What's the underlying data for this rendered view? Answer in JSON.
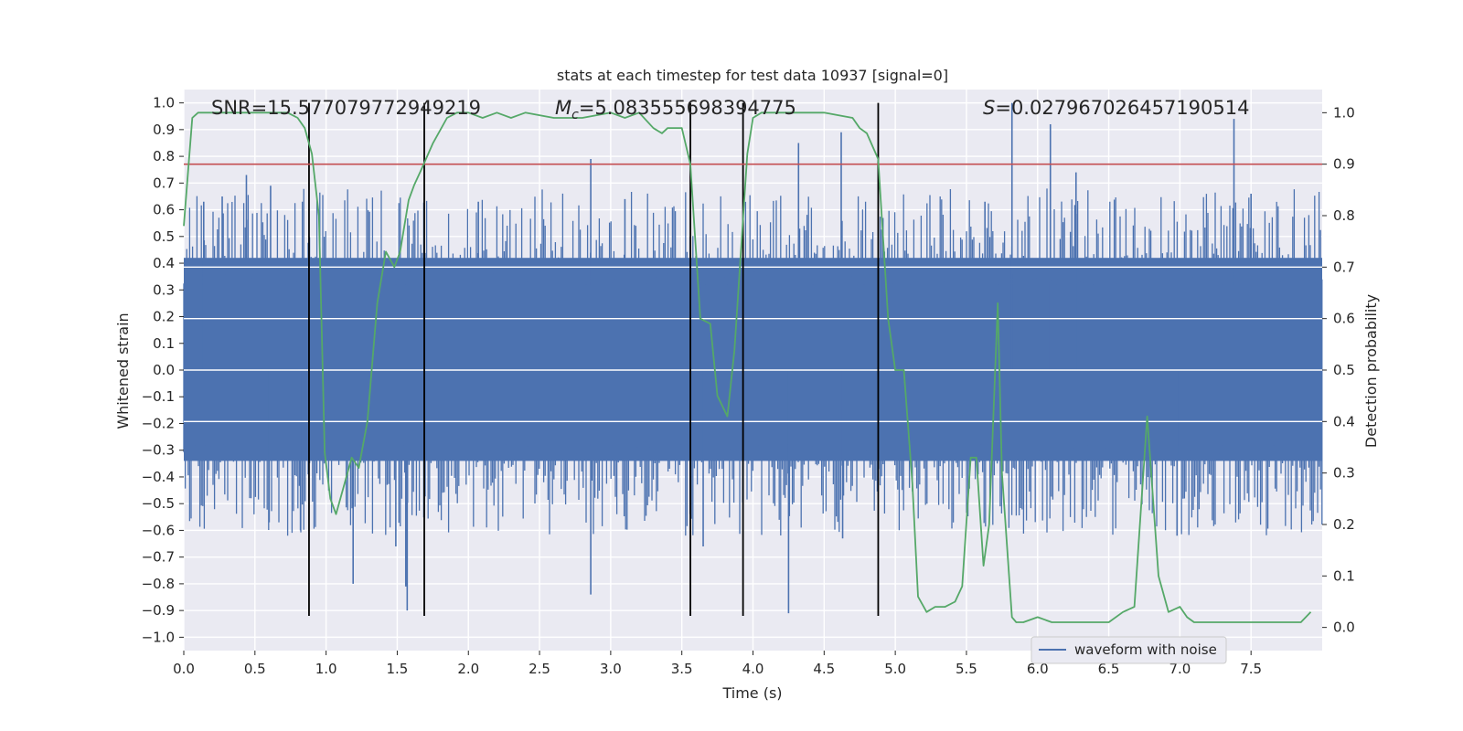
{
  "chart_data": {
    "type": "line",
    "title": "stats at each timestep for test data 10937 [signal=0]",
    "xlabel": "Time (s)",
    "ylabel": "Whitened strain",
    "y2label": "Detection probability",
    "xlim": [
      0.0,
      8.0
    ],
    "ylim": [
      -1.05,
      1.05
    ],
    "y2lim": [
      -0.045,
      1.045
    ],
    "xticks": [
      0.0,
      0.5,
      1.0,
      1.5,
      2.0,
      2.5,
      3.0,
      3.5,
      4.0,
      4.5,
      5.0,
      5.5,
      6.0,
      6.5,
      7.0,
      7.5
    ],
    "xtick_labels": [
      "0.0",
      "0.5",
      "1.0",
      "1.5",
      "2.0",
      "2.5",
      "3.0",
      "3.5",
      "4.0",
      "4.5",
      "5.0",
      "5.5",
      "6.0",
      "6.5",
      "7.0",
      "7.5"
    ],
    "yticks": [
      1.0,
      0.9,
      0.8,
      0.7,
      0.6,
      0.5,
      0.4,
      0.3,
      0.2,
      0.1,
      0.0,
      -0.1,
      -0.2,
      -0.3,
      -0.4,
      -0.5,
      -0.6,
      -0.7,
      -0.8,
      -0.9,
      -1.0
    ],
    "ytick_labels": [
      "1.0",
      "0.9",
      "0.8",
      "0.7",
      "0.6",
      "0.5",
      "0.4",
      "0.3",
      "0.2",
      "0.1",
      "0.0",
      "−0.1",
      "−0.2",
      "−0.3",
      "−0.4",
      "−0.5",
      "−0.6",
      "−0.7",
      "−0.8",
      "−0.9",
      "−1.0"
    ],
    "y2ticks": [
      1.0,
      0.9,
      0.8,
      0.7,
      0.6,
      0.5,
      0.4,
      0.3,
      0.2,
      0.1,
      0.0
    ],
    "y2tick_labels": [
      "1.0",
      "0.9",
      "0.8",
      "0.7",
      "0.6",
      "0.5",
      "0.4",
      "0.3",
      "0.2",
      "0.1",
      "0.0"
    ],
    "annotations": {
      "snr": "SNR=15.577079772949219",
      "mc_symbol": "M",
      "mc_subscript": "c",
      "mc_value": "=5.083555698394775",
      "s_symbol": "S",
      "s_value": "=0.027967026457190514"
    },
    "legend": {
      "location": "lower-center-right",
      "entries": [
        "waveform with noise"
      ]
    },
    "threshold": {
      "value": 0.9,
      "axis": "y2",
      "color": "#c44e52"
    },
    "vlines": {
      "x": [
        0.88,
        1.69,
        3.56,
        3.93,
        4.88
      ],
      "ymin": -0.92,
      "ymax": 1.0,
      "color": "#000000"
    },
    "series": [
      {
        "name": "waveform with noise",
        "axis": "y",
        "color": "#4c72b0",
        "envelope": {
          "upper_typical": 0.42,
          "lower_typical": -0.34,
          "upper_max": 1.0,
          "lower_min": -0.92
        },
        "spikes": [
          {
            "x": 0.14,
            "y": 0.63
          },
          {
            "x": 0.27,
            "y": 0.65
          },
          {
            "x": 0.44,
            "y": 0.73
          },
          {
            "x": 0.61,
            "y": 0.69
          },
          {
            "x": 0.6,
            "y": -0.57
          },
          {
            "x": 0.82,
            "y": -0.6
          },
          {
            "x": 1.19,
            "y": -0.8
          },
          {
            "x": 1.49,
            "y": -0.66
          },
          {
            "x": 1.56,
            "y": -0.81
          },
          {
            "x": 1.57,
            "y": -0.9
          },
          {
            "x": 2.07,
            "y": 0.63
          },
          {
            "x": 2.86,
            "y": 0.79
          },
          {
            "x": 2.86,
            "y": -0.84
          },
          {
            "x": 3.1,
            "y": 0.64
          },
          {
            "x": 3.65,
            "y": -0.66
          },
          {
            "x": 4.25,
            "y": -0.91
          },
          {
            "x": 4.32,
            "y": 0.85
          },
          {
            "x": 4.62,
            "y": 0.89
          },
          {
            "x": 4.63,
            "y": -0.63
          },
          {
            "x": 5.63,
            "y": 0.63
          },
          {
            "x": 5.82,
            "y": 1.0
          },
          {
            "x": 6.09,
            "y": 0.92
          },
          {
            "x": 6.27,
            "y": 0.74
          },
          {
            "x": 7.38,
            "y": 0.94
          },
          {
            "x": 7.5,
            "y": 0.66
          },
          {
            "x": 6.98,
            "y": -0.62
          }
        ]
      },
      {
        "name": "detection probability",
        "axis": "y2",
        "color": "#55a868",
        "x": [
          0.0,
          0.06,
          0.1,
          0.3,
          0.6,
          0.73,
          0.8,
          0.85,
          0.9,
          0.95,
          0.99,
          1.03,
          1.07,
          1.13,
          1.18,
          1.23,
          1.29,
          1.36,
          1.42,
          1.48,
          1.52,
          1.58,
          1.62,
          1.67,
          1.75,
          1.85,
          1.92,
          2.0,
          2.1,
          2.2,
          2.3,
          2.4,
          2.6,
          2.8,
          3.0,
          3.1,
          3.2,
          3.3,
          3.36,
          3.4,
          3.5,
          3.56,
          3.63,
          3.7,
          3.75,
          3.82,
          3.87,
          3.92,
          3.96,
          4.0,
          4.06,
          4.2,
          4.5,
          4.7,
          4.75,
          4.8,
          4.88,
          4.95,
          5.0,
          5.06,
          5.12,
          5.16,
          5.22,
          5.28,
          5.35,
          5.42,
          5.47,
          5.53,
          5.57,
          5.62,
          5.66,
          5.72,
          5.75,
          5.82,
          5.85,
          5.9,
          6.0,
          6.1,
          6.2,
          6.35,
          6.5,
          6.6,
          6.68,
          6.77,
          6.85,
          6.92,
          7.0,
          7.05,
          7.1,
          7.2,
          7.4,
          7.7,
          7.85,
          7.92
        ],
        "y": [
          0.78,
          0.99,
          1.0,
          1.0,
          1.0,
          1.0,
          0.99,
          0.97,
          0.92,
          0.8,
          0.34,
          0.25,
          0.22,
          0.28,
          0.33,
          0.31,
          0.4,
          0.63,
          0.73,
          0.7,
          0.73,
          0.83,
          0.86,
          0.89,
          0.94,
          0.99,
          1.0,
          1.0,
          0.99,
          1.0,
          0.99,
          1.0,
          0.99,
          0.99,
          1.0,
          0.99,
          1.0,
          0.97,
          0.96,
          0.97,
          0.97,
          0.9,
          0.6,
          0.59,
          0.45,
          0.41,
          0.54,
          0.75,
          0.92,
          0.99,
          1.0,
          1.0,
          1.0,
          0.99,
          0.97,
          0.96,
          0.91,
          0.6,
          0.5,
          0.5,
          0.28,
          0.06,
          0.03,
          0.04,
          0.04,
          0.05,
          0.08,
          0.33,
          0.33,
          0.12,
          0.2,
          0.63,
          0.3,
          0.02,
          0.01,
          0.01,
          0.02,
          0.01,
          0.01,
          0.01,
          0.01,
          0.03,
          0.04,
          0.41,
          0.1,
          0.03,
          0.04,
          0.02,
          0.01,
          0.01,
          0.01,
          0.01,
          0.01,
          0.03
        ]
      }
    ]
  }
}
